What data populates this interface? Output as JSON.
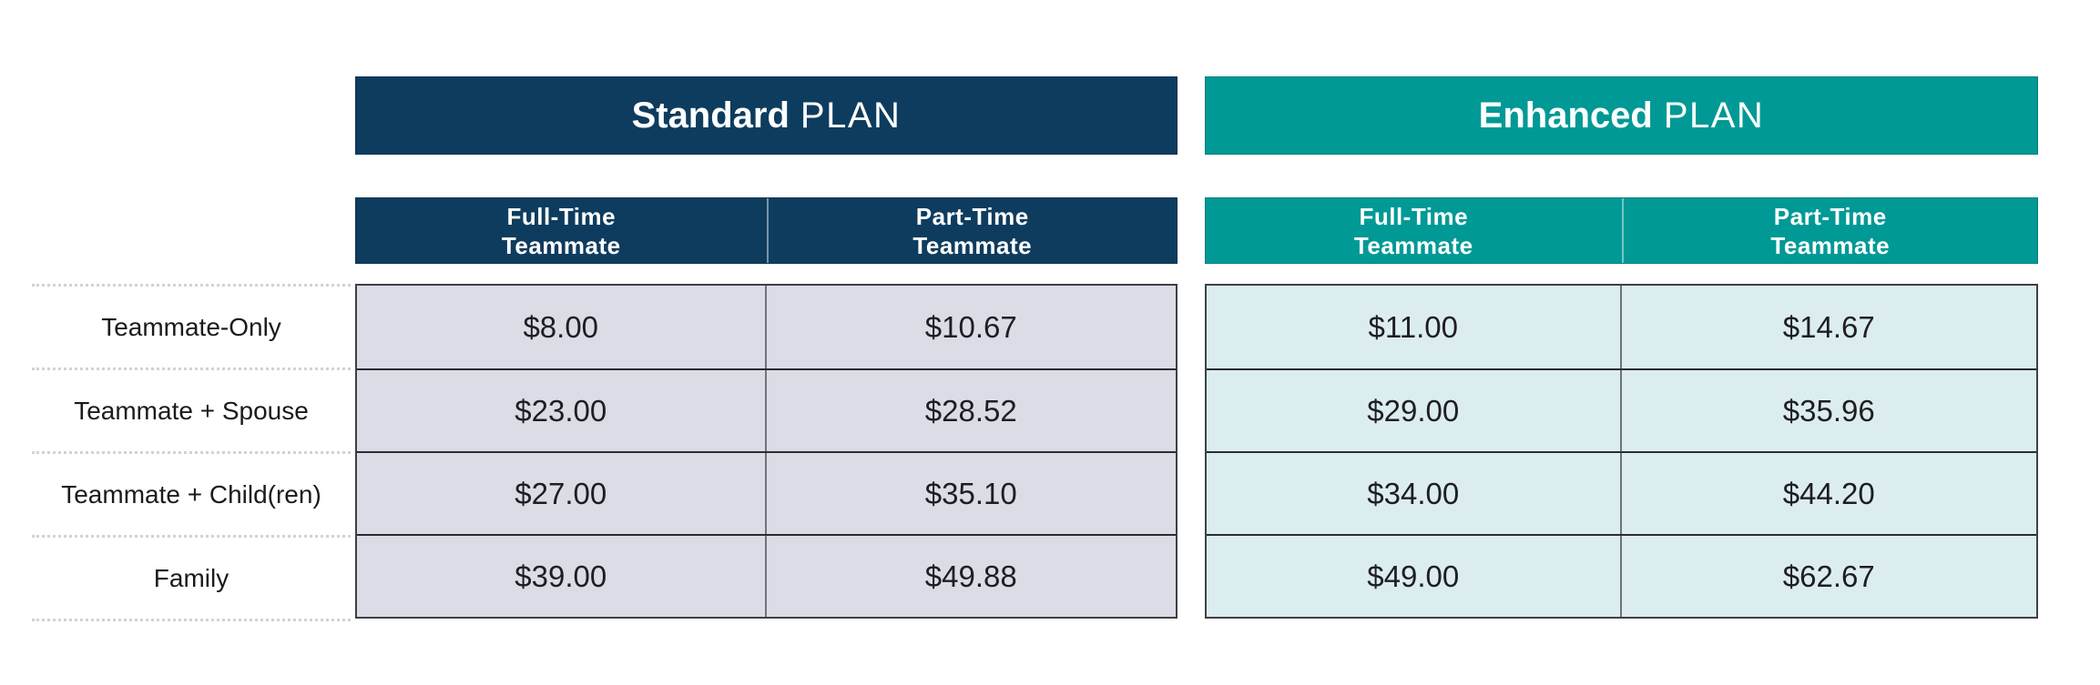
{
  "theme": {
    "navy": "#0e3c5e",
    "teal": "#009995",
    "standard_cell_bg": "#dcdce6",
    "enhanced_cell_bg": "#dcedf0",
    "dotted_line": "#d2d2d4",
    "text": "#1c1c1e"
  },
  "chart_data": {
    "type": "table",
    "title": "Standard PLAN vs Enhanced PLAN premium rates",
    "row_categories": [
      "Teammate-Only",
      "Teammate + Spouse",
      "Teammate + Child(ren)",
      "Family"
    ],
    "plans": [
      {
        "title_bold": "Standard",
        "title_light": "PLAN",
        "columns": [
          {
            "line1": "Full-Time",
            "line2": "Teammate"
          },
          {
            "line1": "Part-Time",
            "line2": "Teammate"
          }
        ],
        "rates": [
          [
            "$8.00",
            "$10.67"
          ],
          [
            "$23.00",
            "$28.52"
          ],
          [
            "$27.00",
            "$35.10"
          ],
          [
            "$39.00",
            "$49.88"
          ]
        ]
      },
      {
        "title_bold": "Enhanced",
        "title_light": "PLAN",
        "columns": [
          {
            "line1": "Full-Time",
            "line2": "Teammate"
          },
          {
            "line1": "Part-Time",
            "line2": "Teammate"
          }
        ],
        "rates": [
          [
            "$11.00",
            "$14.67"
          ],
          [
            "$29.00",
            "$35.96"
          ],
          [
            "$34.00",
            "$44.20"
          ],
          [
            "$49.00",
            "$62.67"
          ]
        ]
      }
    ]
  }
}
